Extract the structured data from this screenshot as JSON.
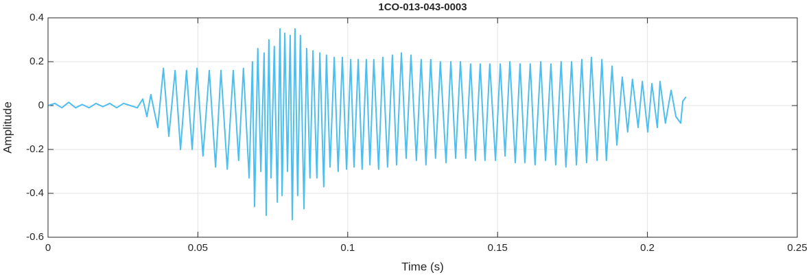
{
  "chart_data": {
    "type": "line",
    "title": "1CO-013-043-0003",
    "xlabel": "Time (s)",
    "ylabel": "Amplitude",
    "color": "#4DBEEE",
    "grid": true,
    "xlim": [
      0,
      0.25
    ],
    "xticks": [
      0,
      0.05,
      0.1,
      0.15,
      0.2,
      0.25
    ],
    "ylim": [
      -0.6,
      0.4
    ],
    "yticks": [
      -0.6,
      -0.4,
      -0.2,
      0,
      0.2,
      0.4
    ],
    "x": [
      0,
      0.0023,
      0.0046,
      0.0069,
      0.0092,
      0.0114,
      0.0137,
      0.016,
      0.0183,
      0.0206,
      0.0229,
      0.0252,
      0.0275,
      0.0298,
      0.0316,
      0.033,
      0.0343,
      0.0366,
      0.0385,
      0.0403,
      0.0424,
      0.0442,
      0.0462,
      0.0481,
      0.0497,
      0.0517,
      0.0538,
      0.0559,
      0.0577,
      0.0598,
      0.0618,
      0.0636,
      0.0652,
      0.0671,
      0.0682,
      0.0689,
      0.07,
      0.071,
      0.0721,
      0.0728,
      0.0737,
      0.0744,
      0.0755,
      0.0765,
      0.0774,
      0.0781,
      0.079,
      0.0799,
      0.0808,
      0.0815,
      0.0824,
      0.0833,
      0.0842,
      0.0854,
      0.0863,
      0.0874,
      0.0884,
      0.0897,
      0.0907,
      0.092,
      0.0929,
      0.0941,
      0.0955,
      0.0968,
      0.0982,
      0.0996,
      0.101,
      0.1021,
      0.1035,
      0.1048,
      0.1062,
      0.1074,
      0.1087,
      0.1103,
      0.1117,
      0.1133,
      0.1149,
      0.1163,
      0.1179,
      0.1195,
      0.1211,
      0.1229,
      0.1245,
      0.1261,
      0.1277,
      0.1293,
      0.1309,
      0.1328,
      0.1344,
      0.136,
      0.1376,
      0.1394,
      0.141,
      0.1426,
      0.1442,
      0.1458,
      0.1474,
      0.1493,
      0.1509,
      0.1525,
      0.1541,
      0.1559,
      0.1575,
      0.1591,
      0.1609,
      0.1625,
      0.1644,
      0.166,
      0.1678,
      0.1694,
      0.1712,
      0.1728,
      0.1747,
      0.1763,
      0.1781,
      0.1797,
      0.1813,
      0.1832,
      0.1848,
      0.1863,
      0.1882,
      0.1898,
      0.1916,
      0.1934,
      0.195,
      0.1969,
      0.1983,
      0.2001,
      0.2015,
      0.2033,
      0.2042,
      0.206,
      0.2079,
      0.2095,
      0.2111,
      0.2118,
      0.2129
    ],
    "values": [
      0,
      0.01,
      -0.01,
      0.015,
      -0.01,
      0.005,
      -0.01,
      0.01,
      -0.005,
      0.01,
      -0.01,
      0.01,
      0,
      -0.01,
      0.03,
      -0.05,
      0.05,
      -0.1,
      0.17,
      -0.14,
      0.16,
      -0.2,
      0.16,
      -0.2,
      0.17,
      -0.23,
      0.16,
      -0.28,
      0.16,
      -0.29,
      0.16,
      -0.25,
      0.17,
      -0.33,
      0.2,
      -0.46,
      0.26,
      -0.3,
      0.24,
      -0.5,
      0.3,
      -0.33,
      0.27,
      -0.44,
      0.35,
      -0.41,
      0.33,
      -0.3,
      0.32,
      -0.52,
      0.35,
      -0.41,
      0.32,
      -0.47,
      0.26,
      -0.33,
      0.25,
      -0.33,
      0.24,
      -0.37,
      0.23,
      -0.28,
      0.22,
      -0.3,
      0.22,
      -0.29,
      0.21,
      -0.28,
      0.21,
      -0.29,
      0.21,
      -0.27,
      0.21,
      -0.29,
      0.22,
      -0.28,
      0.23,
      -0.27,
      0.24,
      -0.24,
      0.23,
      -0.25,
      0.21,
      -0.27,
      0.21,
      -0.24,
      0.2,
      -0.26,
      0.2,
      -0.24,
      0.2,
      -0.24,
      0.19,
      -0.25,
      0.19,
      -0.25,
      0.19,
      -0.25,
      0.19,
      -0.23,
      0.2,
      -0.26,
      0.19,
      -0.26,
      0.19,
      -0.27,
      0.2,
      -0.25,
      0.19,
      -0.27,
      0.2,
      -0.28,
      0.2,
      -0.27,
      0.21,
      -0.26,
      0.22,
      -0.25,
      0.21,
      -0.25,
      0.18,
      -0.18,
      0.13,
      -0.12,
      0.12,
      -0.1,
      0.11,
      -0.12,
      0.1,
      -0.1,
      0.11,
      -0.08,
      0.07,
      -0.05,
      -0.08,
      0.02,
      0.04
    ]
  }
}
